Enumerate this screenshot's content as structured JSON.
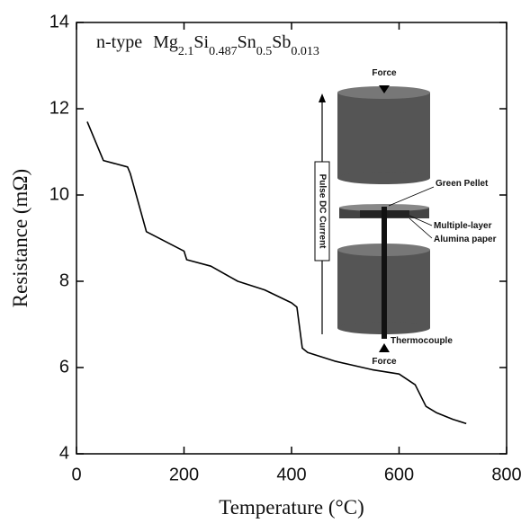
{
  "chart_data": {
    "type": "line",
    "x_label": "Temperature (°C)",
    "y_label": "Resistance (mΩ)",
    "annotation": {
      "text": "n-type",
      "formula": [
        {
          "el": "Mg",
          "sub": "2.1"
        },
        {
          "el": "Si",
          "sub": "0.487"
        },
        {
          "el": "Sn",
          "sub": "0.5"
        },
        {
          "el": "Sb",
          "sub": "0.013"
        }
      ]
    },
    "x": [
      20,
      50,
      95,
      100,
      130,
      200,
      205,
      250,
      300,
      350,
      400,
      410,
      420,
      430,
      480,
      550,
      600,
      630,
      650,
      670,
      700,
      725
    ],
    "values": [
      11.7,
      10.8,
      10.65,
      10.5,
      9.15,
      8.7,
      8.5,
      8.35,
      8.0,
      7.8,
      7.5,
      7.4,
      6.45,
      6.35,
      6.15,
      5.95,
      5.85,
      5.6,
      5.1,
      4.95,
      4.8,
      4.7
    ],
    "color": "#000000",
    "xlim": [
      0,
      800
    ],
    "xticks": [
      0,
      200,
      400,
      600,
      800
    ],
    "ylim": [
      4,
      14
    ],
    "yticks": [
      4,
      6,
      8,
      10,
      12,
      14
    ],
    "grid": false,
    "inset": {
      "force_top": "Force",
      "force_bottom": "Force",
      "current": "Pulse DC Current",
      "pellet": "Green Pellet",
      "layer1": "Multiple-layer",
      "layer2": "Alumina paper",
      "thermocouple": "Thermocouple"
    }
  }
}
